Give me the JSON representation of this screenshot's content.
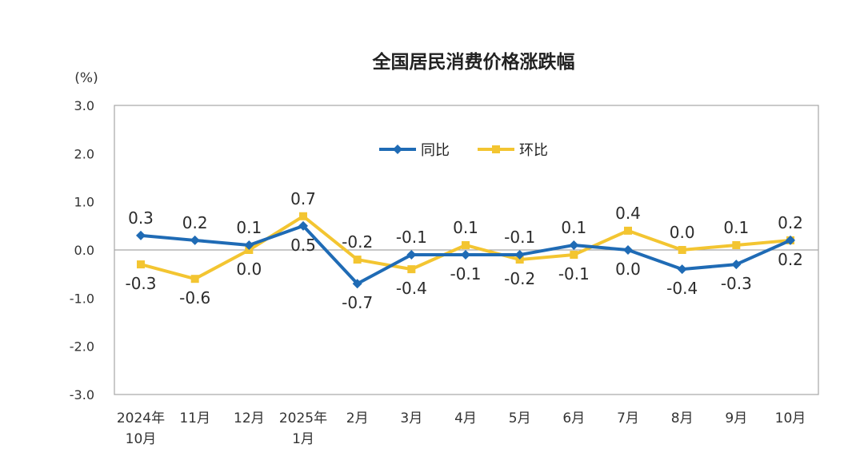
{
  "chart_data": {
    "type": "line",
    "title": "全国居民消费价格涨跌幅",
    "unit_label": "(%)",
    "categories": [
      [
        "2024年",
        "10月"
      ],
      [
        "11月"
      ],
      [
        "12月"
      ],
      [
        "2025年",
        "1月"
      ],
      [
        "2月"
      ],
      [
        "3月"
      ],
      [
        "4月"
      ],
      [
        "5月"
      ],
      [
        "6月"
      ],
      [
        "7月"
      ],
      [
        "8月"
      ],
      [
        "9月"
      ],
      [
        "10月"
      ]
    ],
    "ylim": [
      -3.0,
      3.0
    ],
    "yticks": [
      "3.0",
      "2.0",
      "1.0",
      "0.0",
      "-1.0",
      "-2.0",
      "-3.0"
    ],
    "grid": false,
    "legend_position": "top-center",
    "series": [
      {
        "name": "同比",
        "color": "#1f6bb5",
        "marker": "diamond",
        "values": [
          0.3,
          0.2,
          0.1,
          0.5,
          -0.7,
          -0.1,
          -0.1,
          -0.1,
          0.1,
          0.0,
          -0.4,
          -0.3,
          0.2
        ],
        "labels": [
          "0.3",
          "0.2",
          "0.1",
          "0.5",
          "-0.7",
          "-0.1",
          "-0.1",
          "-0.1",
          "0.1",
          "0.0",
          "-0.4",
          "-0.3",
          "0.2"
        ]
      },
      {
        "name": "环比",
        "color": "#f3c531",
        "marker": "square",
        "values": [
          -0.3,
          -0.6,
          0.0,
          0.7,
          -0.2,
          -0.4,
          0.1,
          -0.2,
          -0.1,
          0.4,
          0.0,
          0.1,
          0.2
        ],
        "labels": [
          "-0.3",
          "-0.6",
          "0.0",
          "0.7",
          "-0.2",
          "-0.4",
          "0.1",
          "-0.2",
          "-0.1",
          "0.4",
          "0.0",
          "0.1",
          "0.2"
        ]
      }
    ]
  }
}
